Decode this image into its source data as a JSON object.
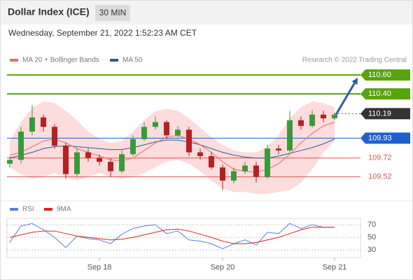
{
  "chart_data": {
    "type": "candlestick",
    "title": "Dollar Index (ICE)",
    "timeframe": "30 MIN",
    "subtitle": "Wednesday, September 21, 2022 1:52:23 AM CET",
    "credit": "Research © 2022 Trading Central",
    "categories": [
      null,
      null,
      null,
      null,
      null,
      null,
      null,
      null,
      "Sep 18",
      null,
      null,
      null,
      null,
      null,
      null,
      null,
      null,
      null,
      null,
      "Sep 20",
      null,
      null,
      null,
      null,
      null,
      null,
      null,
      null,
      null,
      "Sep 21"
    ],
    "open": [
      109.66,
      109.7,
      110.0,
      110.15,
      110.05,
      109.85,
      109.55,
      109.78,
      109.72,
      109.68,
      109.58,
      109.76,
      109.92,
      110.05,
      110.1,
      109.96,
      110.02,
      109.78,
      109.74,
      109.62,
      109.48,
      109.58,
      109.64,
      109.52,
      109.82,
      109.8,
      110.12,
      110.06,
      110.18,
      110.14
    ],
    "high": [
      109.74,
      110.05,
      110.28,
      110.18,
      110.08,
      109.88,
      109.82,
      109.82,
      109.76,
      109.72,
      109.8,
      109.96,
      110.1,
      110.16,
      110.12,
      110.06,
      110.05,
      109.82,
      109.78,
      109.65,
      109.62,
      109.68,
      109.68,
      109.86,
      109.86,
      110.22,
      110.16,
      110.23,
      110.22,
      110.2
    ],
    "low": [
      109.62,
      109.66,
      109.96,
      110.0,
      109.82,
      109.5,
      109.52,
      109.68,
      109.64,
      109.52,
      109.56,
      109.74,
      109.9,
      110.02,
      109.92,
      109.94,
      109.74,
      109.7,
      109.6,
      109.38,
      109.45,
      109.55,
      109.46,
      109.5,
      109.76,
      109.78,
      110.02,
      110.04,
      110.1,
      110.12
    ],
    "close": [
      109.7,
      110.0,
      110.15,
      110.05,
      109.85,
      109.55,
      109.78,
      109.72,
      109.68,
      109.58,
      109.76,
      109.92,
      110.05,
      110.1,
      109.96,
      110.02,
      109.78,
      109.74,
      109.62,
      109.48,
      109.58,
      109.64,
      109.52,
      109.82,
      109.8,
      110.12,
      110.06,
      110.18,
      110.14,
      110.18
    ],
    "up_color": "#3a9a3a",
    "down_color": "#b52020",
    "ylim": [
      109.28,
      110.69
    ],
    "series": [
      {
        "name": "MA 20 + Bollinger Bands",
        "color": "#e86a6a",
        "values": [
          109.75,
          109.78,
          109.84,
          109.9,
          109.92,
          109.88,
          109.82,
          109.78,
          109.74,
          109.7,
          109.69,
          109.72,
          109.8,
          109.88,
          109.94,
          109.96,
          109.92,
          109.86,
          109.78,
          109.68,
          109.6,
          109.58,
          109.57,
          109.6,
          109.66,
          109.76,
          109.88,
          109.98,
          110.06,
          110.1
        ],
        "band_color": "#fbd0d0",
        "upper": [
          109.9,
          110.1,
          110.25,
          110.32,
          110.3,
          110.22,
          110.12,
          110.0,
          109.92,
          109.88,
          109.9,
          110.0,
          110.12,
          110.22,
          110.24,
          110.22,
          110.14,
          110.04,
          109.94,
          109.86,
          109.8,
          109.78,
          109.78,
          109.84,
          109.96,
          110.14,
          110.26,
          110.32,
          110.3,
          110.26
        ],
        "lower": [
          109.62,
          109.55,
          109.5,
          109.52,
          109.56,
          109.52,
          109.48,
          109.52,
          109.56,
          109.52,
          109.5,
          109.52,
          109.56,
          109.62,
          109.68,
          109.7,
          109.66,
          109.58,
          109.48,
          109.4,
          109.36,
          109.36,
          109.34,
          109.34,
          109.36,
          109.38,
          109.46,
          109.6,
          109.78,
          109.9
        ]
      },
      {
        "name": "MA 50",
        "color": "#2f5a9a",
        "values": [
          109.72,
          109.75,
          109.78,
          109.82,
          109.84,
          109.85,
          109.84,
          109.83,
          109.82,
          109.81,
          109.81,
          109.83,
          109.86,
          109.89,
          109.91,
          109.91,
          109.89,
          109.86,
          109.82,
          109.78,
          109.75,
          109.73,
          109.72,
          109.72,
          109.74,
          109.77,
          109.8,
          109.83,
          109.87,
          109.92
        ]
      }
    ],
    "levels": [
      {
        "value": 110.6,
        "label": "110.60",
        "color": "#5aa310",
        "kind": "box"
      },
      {
        "value": 110.4,
        "label": "110.40",
        "color": "#5aa310",
        "kind": "box"
      },
      {
        "value": 110.19,
        "label": "110.19",
        "color": "#333333",
        "kind": "current"
      },
      {
        "value": 109.93,
        "label": "109.93",
        "color": "#1f5fd0",
        "kind": "box"
      },
      {
        "value": 109.72,
        "label": "109.72",
        "color": "#e05555",
        "kind": "text"
      },
      {
        "value": 109.52,
        "label": "109.52",
        "color": "#e05555",
        "kind": "text"
      }
    ],
    "arrow_color": "#2f5fa0",
    "indicator": {
      "ylim": [
        18,
        80
      ],
      "yticks": [
        70,
        50,
        30
      ],
      "series": [
        {
          "name": "RSI",
          "color": "#5b7fdc",
          "values": [
            42,
            68,
            72,
            62,
            50,
            34,
            52,
            48,
            46,
            40,
            55,
            64,
            68,
            70,
            56,
            60,
            46,
            44,
            40,
            32,
            40,
            46,
            38,
            58,
            56,
            72,
            64,
            70,
            66,
            66
          ]
        },
        {
          "name": "9MA",
          "color": "#dd2222",
          "values": [
            50,
            54,
            58,
            60,
            60,
            56,
            52,
            50,
            48,
            46,
            47,
            50,
            54,
            58,
            62,
            63,
            60,
            55,
            50,
            44,
            40,
            40,
            42,
            46,
            50,
            56,
            62,
            66,
            66,
            66
          ]
        }
      ]
    }
  }
}
